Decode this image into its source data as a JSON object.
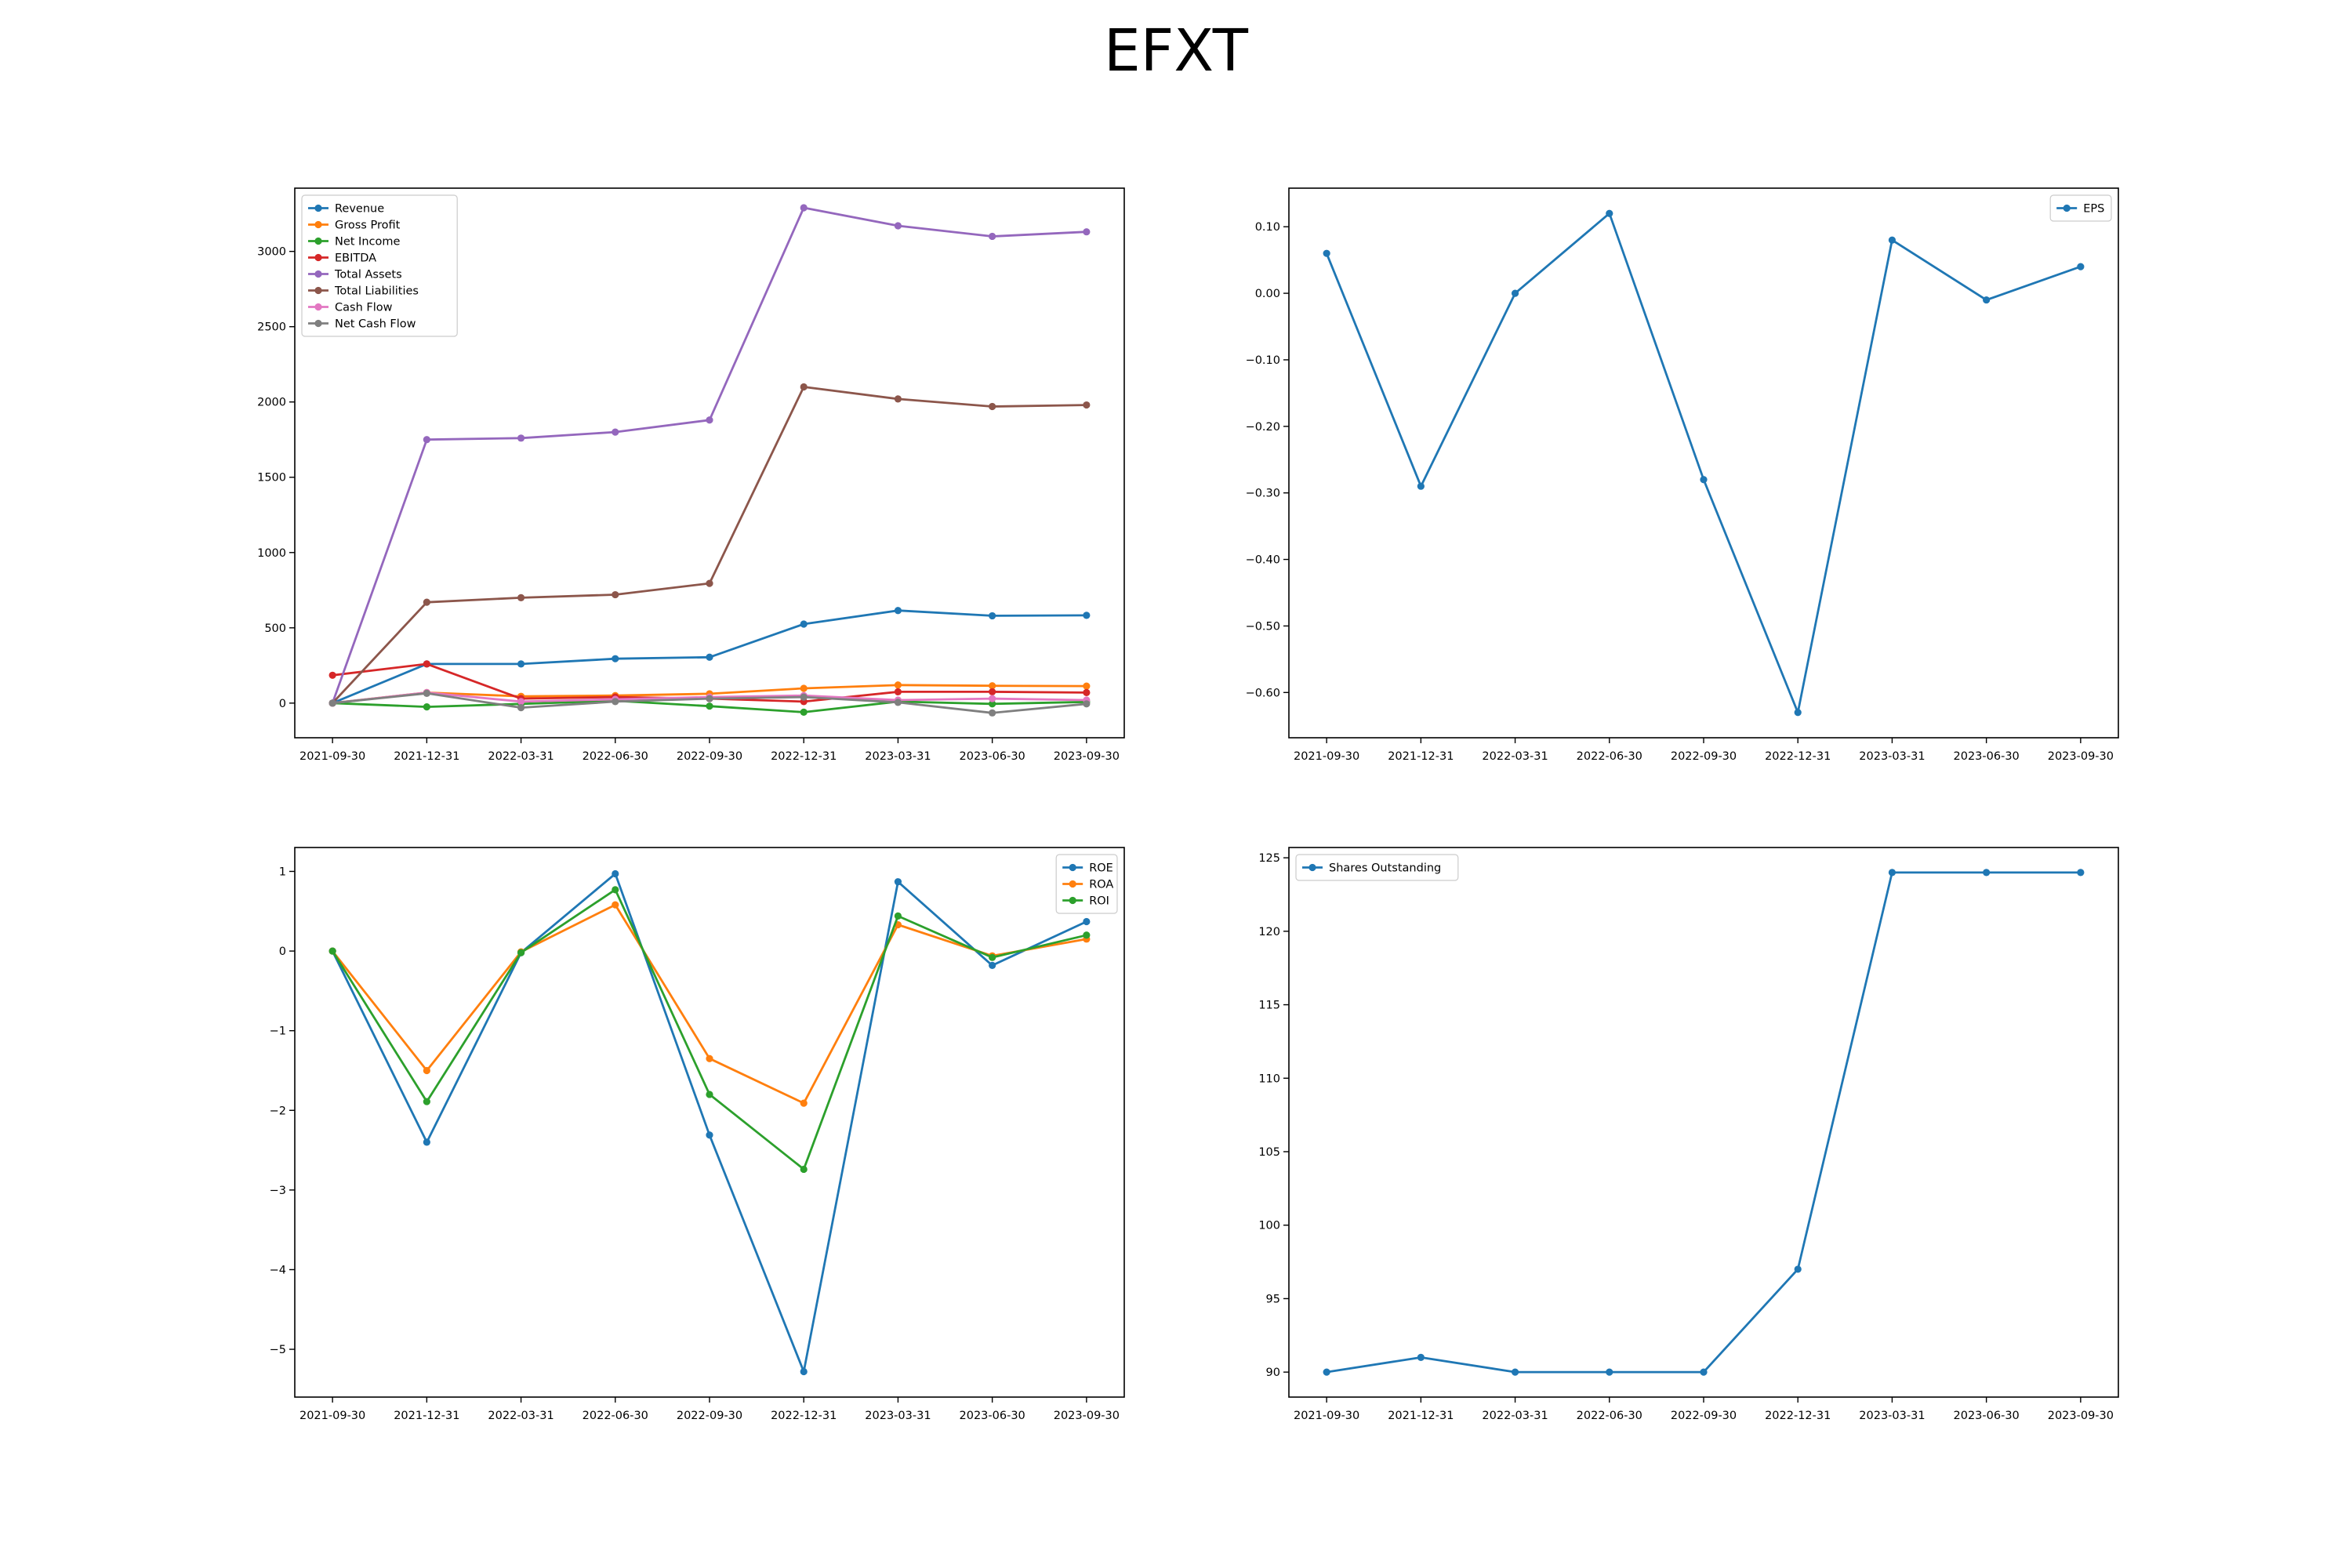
{
  "title": "EFXT",
  "chart_data": [
    {
      "type": "line",
      "x": [
        "2021-09-30",
        "2021-12-31",
        "2022-03-31",
        "2022-06-30",
        "2022-09-30",
        "2022-12-31",
        "2023-03-31",
        "2023-06-30",
        "2023-09-30"
      ],
      "ylim": [
        -230,
        3420
      ],
      "yticks": [
        0,
        500,
        1000,
        1500,
        2000,
        2500,
        3000
      ],
      "legend": "upper left",
      "grid": false,
      "series": [
        {
          "name": "Revenue",
          "color": "#1f77b4",
          "values": [
            0,
            260,
            260,
            295,
            305,
            525,
            615,
            580,
            583
          ]
        },
        {
          "name": "Gross Profit",
          "color": "#ff7f0e",
          "values": [
            0,
            70,
            45,
            50,
            62,
            98,
            120,
            115,
            113
          ]
        },
        {
          "name": "Net Income",
          "color": "#2ca02c",
          "values": [
            0,
            -25,
            -5,
            15,
            -20,
            -60,
            10,
            -5,
            8
          ]
        },
        {
          "name": "EBITDA",
          "color": "#d62728",
          "values": [
            185,
            260,
            30,
            40,
            30,
            10,
            75,
            75,
            70
          ]
        },
        {
          "name": "Total Assets",
          "color": "#9467bd",
          "values": [
            0,
            1750,
            1760,
            1800,
            1880,
            3290,
            3170,
            3100,
            3130
          ]
        },
        {
          "name": "Total Liabilities",
          "color": "#8c564b",
          "values": [
            0,
            670,
            700,
            720,
            795,
            2100,
            2020,
            1970,
            1980
          ]
        },
        {
          "name": "Cash Flow",
          "color": "#e377c2",
          "values": [
            0,
            70,
            10,
            25,
            40,
            50,
            20,
            30,
            20
          ]
        },
        {
          "name": "Net Cash Flow",
          "color": "#7f7f7f",
          "values": [
            0,
            65,
            -30,
            10,
            30,
            40,
            5,
            -65,
            -5
          ]
        }
      ]
    },
    {
      "type": "line",
      "x": [
        "2021-09-30",
        "2021-12-31",
        "2022-03-31",
        "2022-06-30",
        "2022-09-30",
        "2022-12-31",
        "2023-03-31",
        "2023-06-30",
        "2023-09-30"
      ],
      "ylim": [
        -0.668,
        0.158
      ],
      "yticks": [
        -0.6,
        -0.5,
        -0.4,
        -0.3,
        -0.2,
        -0.1,
        0.0,
        0.1
      ],
      "legend": "upper right",
      "grid": false,
      "series": [
        {
          "name": "EPS",
          "color": "#1f77b4",
          "values": [
            0.06,
            -0.29,
            0.0,
            0.12,
            -0.28,
            -0.63,
            0.08,
            -0.01,
            0.04
          ]
        }
      ]
    },
    {
      "type": "line",
      "x": [
        "2021-09-30",
        "2021-12-31",
        "2022-03-31",
        "2022-06-30",
        "2022-09-30",
        "2022-12-31",
        "2023-03-31",
        "2023-06-30",
        "2023-09-30"
      ],
      "ylim": [
        -5.6,
        1.3
      ],
      "yticks": [
        -5,
        -4,
        -3,
        -2,
        -1,
        0,
        1
      ],
      "legend": "upper right",
      "grid": false,
      "series": [
        {
          "name": "ROE",
          "color": "#1f77b4",
          "values": [
            0,
            -2.4,
            -0.02,
            0.97,
            -2.31,
            -5.28,
            0.87,
            -0.18,
            0.37
          ]
        },
        {
          "name": "ROA",
          "color": "#ff7f0e",
          "values": [
            0,
            -1.5,
            -0.01,
            0.58,
            -1.35,
            -1.91,
            0.33,
            -0.06,
            0.15
          ]
        },
        {
          "name": "ROI",
          "color": "#2ca02c",
          "values": [
            0,
            -1.89,
            -0.02,
            0.77,
            -1.8,
            -2.74,
            0.44,
            -0.08,
            0.2
          ]
        }
      ]
    },
    {
      "type": "line",
      "x": [
        "2021-09-30",
        "2021-12-31",
        "2022-03-31",
        "2022-06-30",
        "2022-09-30",
        "2022-12-31",
        "2023-03-31",
        "2023-06-30",
        "2023-09-30"
      ],
      "ylim": [
        88.3,
        125.7
      ],
      "yticks": [
        90,
        95,
        100,
        105,
        110,
        115,
        120,
        125
      ],
      "legend": "upper left",
      "grid": false,
      "series": [
        {
          "name": "Shares Outstanding",
          "color": "#1f77b4",
          "values": [
            90,
            91,
            90,
            90,
            90,
            97,
            124,
            124,
            124
          ]
        }
      ]
    }
  ]
}
